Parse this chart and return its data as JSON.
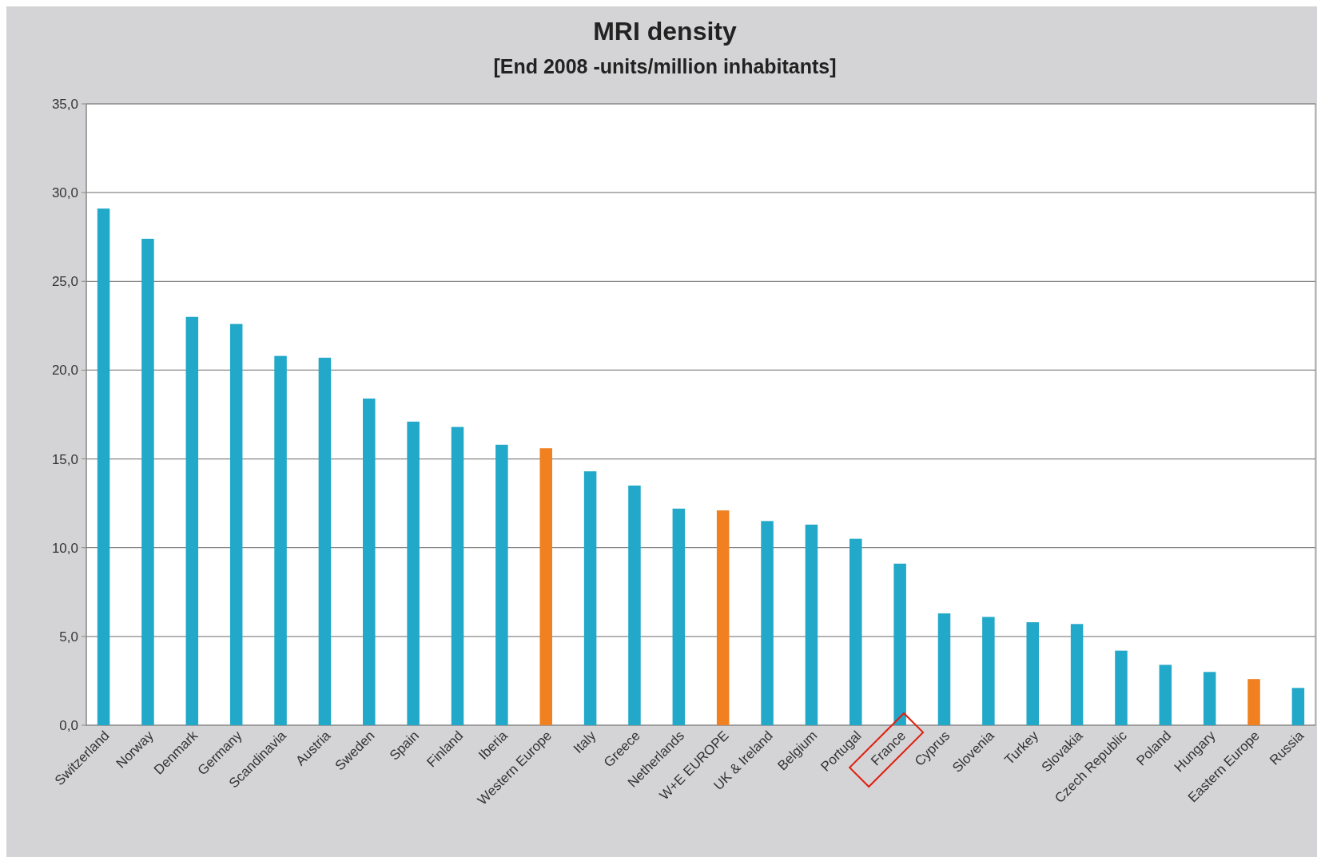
{
  "chart_data": {
    "type": "bar",
    "title": "MRI density",
    "subtitle": "[End 2008 -units/million inhabitants]",
    "categories": [
      "Switzerland",
      "Norway",
      "Denmark",
      "Germany",
      "Scandinavia",
      "Austria",
      "Sweden",
      "Spain",
      "Finland",
      "Iberia",
      "Western Europe",
      "Italy",
      "Greece",
      "Netherlands",
      "W+E EUROPE",
      "UK & Ireland",
      "Belgium",
      "Portugal",
      "France",
      "Cyprus",
      "Slovenia",
      "Turkey",
      "Slovakia",
      "Czech Republic",
      "Poland",
      "Hungary",
      "Eastern Europe",
      "Russia"
    ],
    "values": [
      29.1,
      27.4,
      23.0,
      22.6,
      20.8,
      20.7,
      18.4,
      17.1,
      16.8,
      15.8,
      15.6,
      14.3,
      13.5,
      12.2,
      12.1,
      11.5,
      11.3,
      10.5,
      9.1,
      6.3,
      6.1,
      5.8,
      5.7,
      4.2,
      3.4,
      3.0,
      2.6,
      2.1
    ],
    "colors": [
      "#22a8c8",
      "#22a8c8",
      "#22a8c8",
      "#22a8c8",
      "#22a8c8",
      "#22a8c8",
      "#22a8c8",
      "#22a8c8",
      "#22a8c8",
      "#22a8c8",
      "#f08020",
      "#22a8c8",
      "#22a8c8",
      "#22a8c8",
      "#f08020",
      "#22a8c8",
      "#22a8c8",
      "#22a8c8",
      "#22a8c8",
      "#22a8c8",
      "#22a8c8",
      "#22a8c8",
      "#22a8c8",
      "#22a8c8",
      "#22a8c8",
      "#22a8c8",
      "#f08020",
      "#22a8c8"
    ],
    "ylim": [
      0,
      35
    ],
    "yticks": [
      {
        "value": 0,
        "label": "0,0"
      },
      {
        "value": 5,
        "label": "5,0"
      },
      {
        "value": 10,
        "label": "10,0"
      },
      {
        "value": 15,
        "label": "15,0"
      },
      {
        "value": 20,
        "label": "20,0"
      },
      {
        "value": 25,
        "label": "25,0"
      },
      {
        "value": 30,
        "label": "30,0"
      },
      {
        "value": 35,
        "label": "35,0"
      }
    ],
    "grid": "y"
  }
}
